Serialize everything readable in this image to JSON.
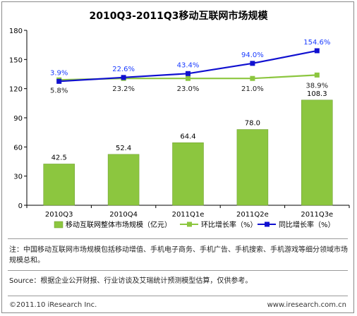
{
  "chart_data": {
    "type": "bar+line",
    "title": "2010Q3-2011Q3移动互联网市场规模",
    "categories": [
      "2010Q3",
      "2010Q4",
      "2011Q1e",
      "2011Q2e",
      "2011Q3e"
    ],
    "ylim": [
      0,
      180
    ],
    "yticks": [
      0,
      30,
      60,
      90,
      120,
      150,
      180
    ],
    "bars": {
      "name": "移动互联网整体市场规模（亿元）",
      "values": [
        42.5,
        52.4,
        64.4,
        78.0,
        108.3
      ],
      "labels": [
        "42.5",
        "52.4",
        "64.4",
        "78.0",
        "108.3"
      ],
      "color": "#8cc63f"
    },
    "lines": [
      {
        "name": "环比增长率（%）",
        "color": "#8cc63f",
        "values_pct": [
          5.8,
          23.2,
          23.0,
          21.0,
          38.9
        ],
        "labels": [
          "5.8%",
          "23.2%",
          "23.0%",
          "21.0%",
          "38.9%"
        ],
        "plot_values": [
          129,
          130.5,
          130.5,
          130.5,
          134
        ],
        "label_color": "#222222"
      },
      {
        "name": "同比增长率（%）",
        "color": "#1010d0",
        "values_pct": [
          3.9,
          22.6,
          43.4,
          94.0,
          154.6
        ],
        "labels": [
          "3.9%",
          "22.6%",
          "43.4%",
          "94.0%",
          "154.6%"
        ],
        "plot_values": [
          127.5,
          131.5,
          135.5,
          146,
          159
        ],
        "label_color": "#1a3cff"
      }
    ],
    "grid": false,
    "legend": "bottom"
  },
  "notes": {
    "note_text": "注：中国移动互联网市场规模包括移动增值、手机电子商务、手机广告、手机搜索、手机游戏等细分领域市场规模总和。",
    "source_text": "Source：根据企业公开财报、行业访谈及艾瑞统计预测模型估算，仅供参考。"
  },
  "footer": {
    "copyright": "©2011.10 iResearch Inc.",
    "website": "www.iresearch.com.cn"
  }
}
